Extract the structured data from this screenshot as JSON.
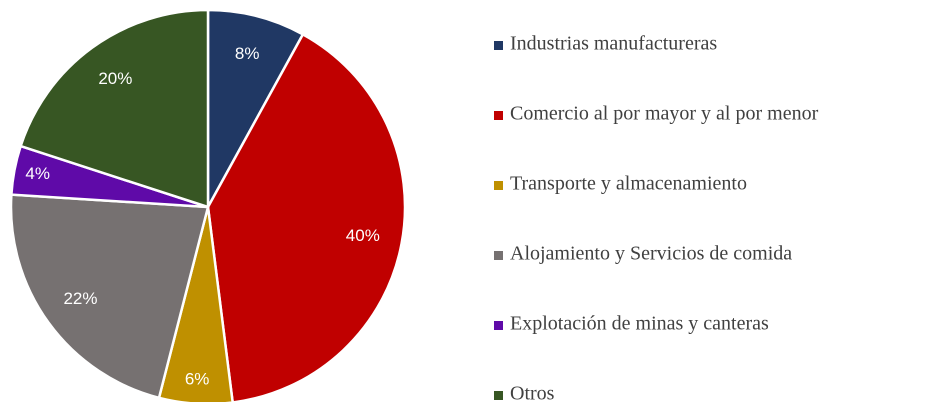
{
  "chart_data": {
    "type": "pie",
    "categories": [
      "Industrias manufactureras",
      "Comercio al por mayor y al por menor",
      "Transporte y almacenamiento",
      "Alojamiento y Servicios de comida",
      "Explotación de minas y canteras",
      "Otros"
    ],
    "values": [
      8,
      40,
      6,
      22,
      4,
      20
    ],
    "value_labels": [
      "8%",
      "40%",
      "6%",
      "22%",
      "4%",
      "20%"
    ],
    "colors": [
      "#203864",
      "#c00000",
      "#bf9000",
      "#767171",
      "#5f0aa8",
      "#375623"
    ],
    "legend": "right"
  }
}
